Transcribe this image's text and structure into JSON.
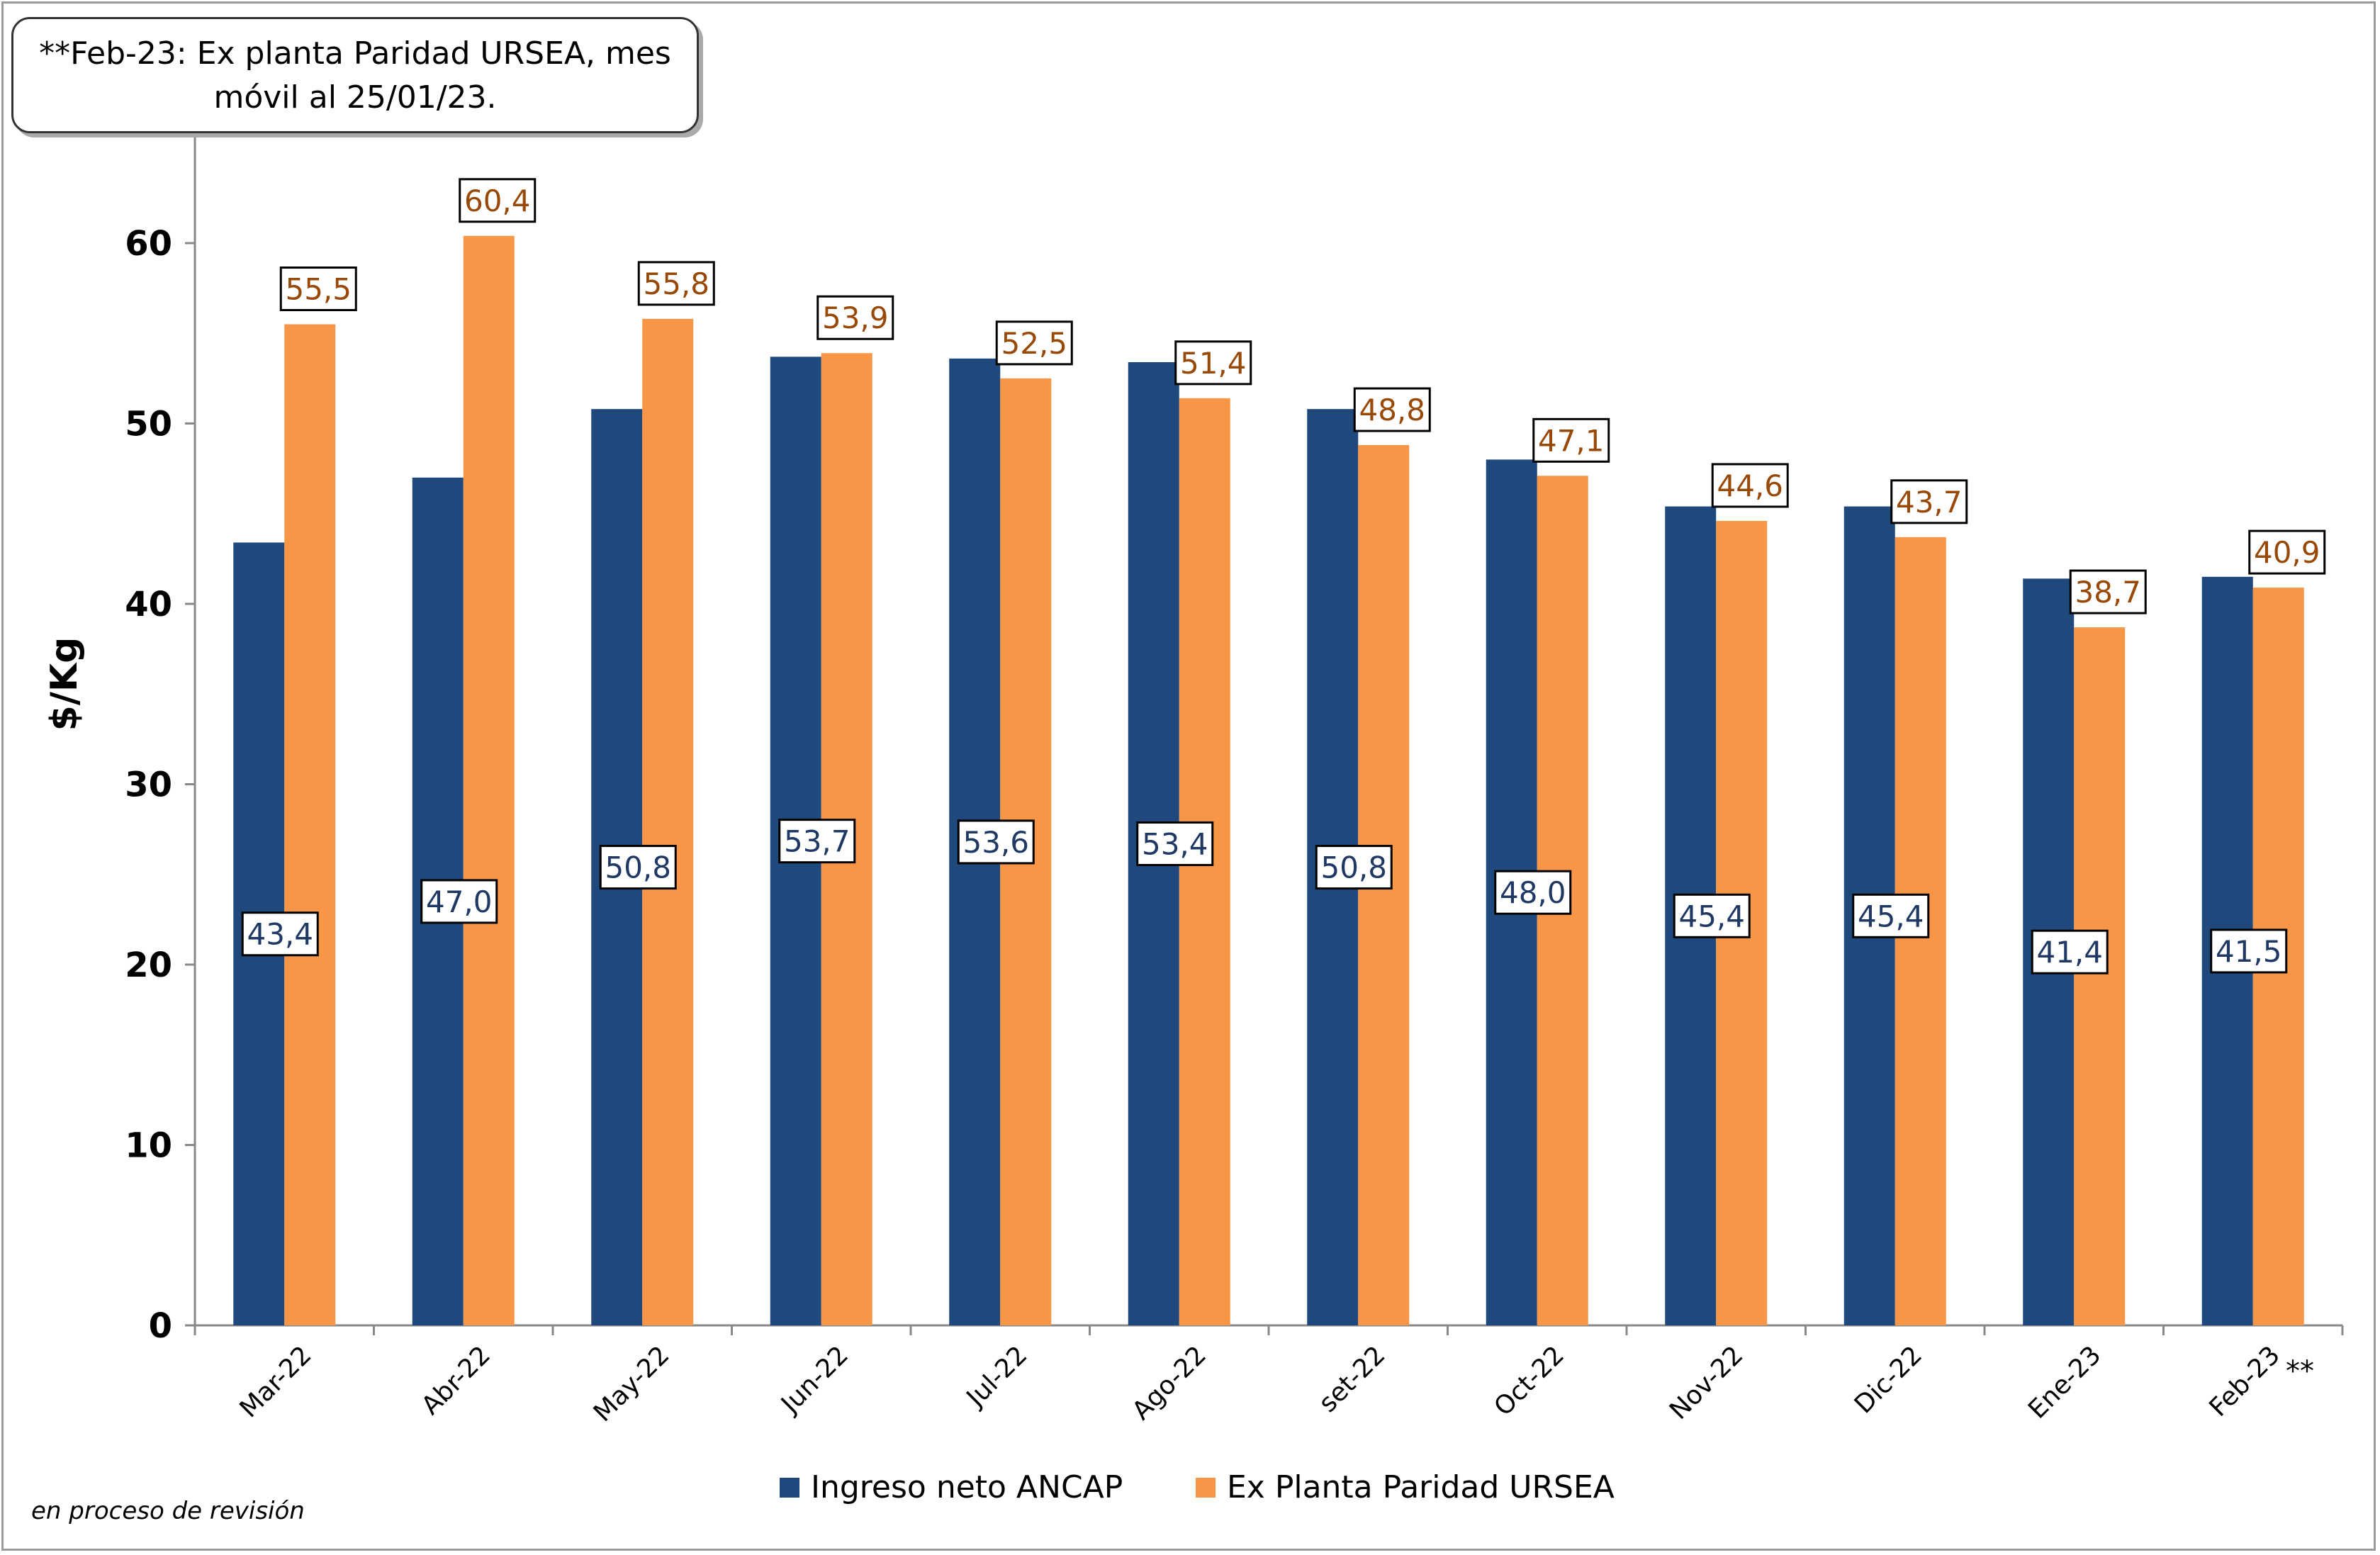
{
  "note": {
    "line1": "**Feb-23: Ex planta Paridad URSEA, mes",
    "line2": "móvil al 25/01/23."
  },
  "footnote": "en proceso de revisión",
  "stars_marker": "**",
  "colors": {
    "series1": "#1f497d",
    "series2": "#f79646",
    "label_text1": "#1f3864",
    "label_text2": "#984807"
  },
  "chart_data": {
    "type": "bar",
    "title": "",
    "xlabel": "",
    "ylabel": "$/Kg",
    "ylim": [
      0,
      65
    ],
    "yticks": [
      0,
      10,
      20,
      30,
      40,
      50,
      60
    ],
    "grid": false,
    "legend_position": "bottom",
    "categories": [
      "Mar-22",
      "Abr-22",
      "May-22",
      "Jun-22",
      "Jul-22",
      "Ago-22",
      "set-22",
      "Oct-22",
      "Nov-22",
      "Dic-22",
      "Ene-23",
      "Feb-23"
    ],
    "series": [
      {
        "name": "Ingreso neto ANCAP",
        "values": [
          43.4,
          47.0,
          50.8,
          53.7,
          53.6,
          53.4,
          50.8,
          48.0,
          45.4,
          45.4,
          41.4,
          41.5
        ],
        "labels": [
          "43,4",
          "47,0",
          "50,8",
          "53,7",
          "53,6",
          "53,4",
          "50,8",
          "48,0",
          "45,4",
          "45,4",
          "41,4",
          "41,5"
        ]
      },
      {
        "name": "Ex Planta Paridad URSEA",
        "values": [
          55.5,
          60.4,
          55.8,
          53.9,
          52.5,
          51.4,
          48.8,
          47.1,
          44.6,
          43.7,
          38.7,
          40.9
        ],
        "labels": [
          "55,5",
          "60,4",
          "55,8",
          "53,9",
          "52,5",
          "51,4",
          "48,8",
          "47,1",
          "44,6",
          "43,7",
          "38,7",
          "40,9"
        ]
      }
    ]
  }
}
